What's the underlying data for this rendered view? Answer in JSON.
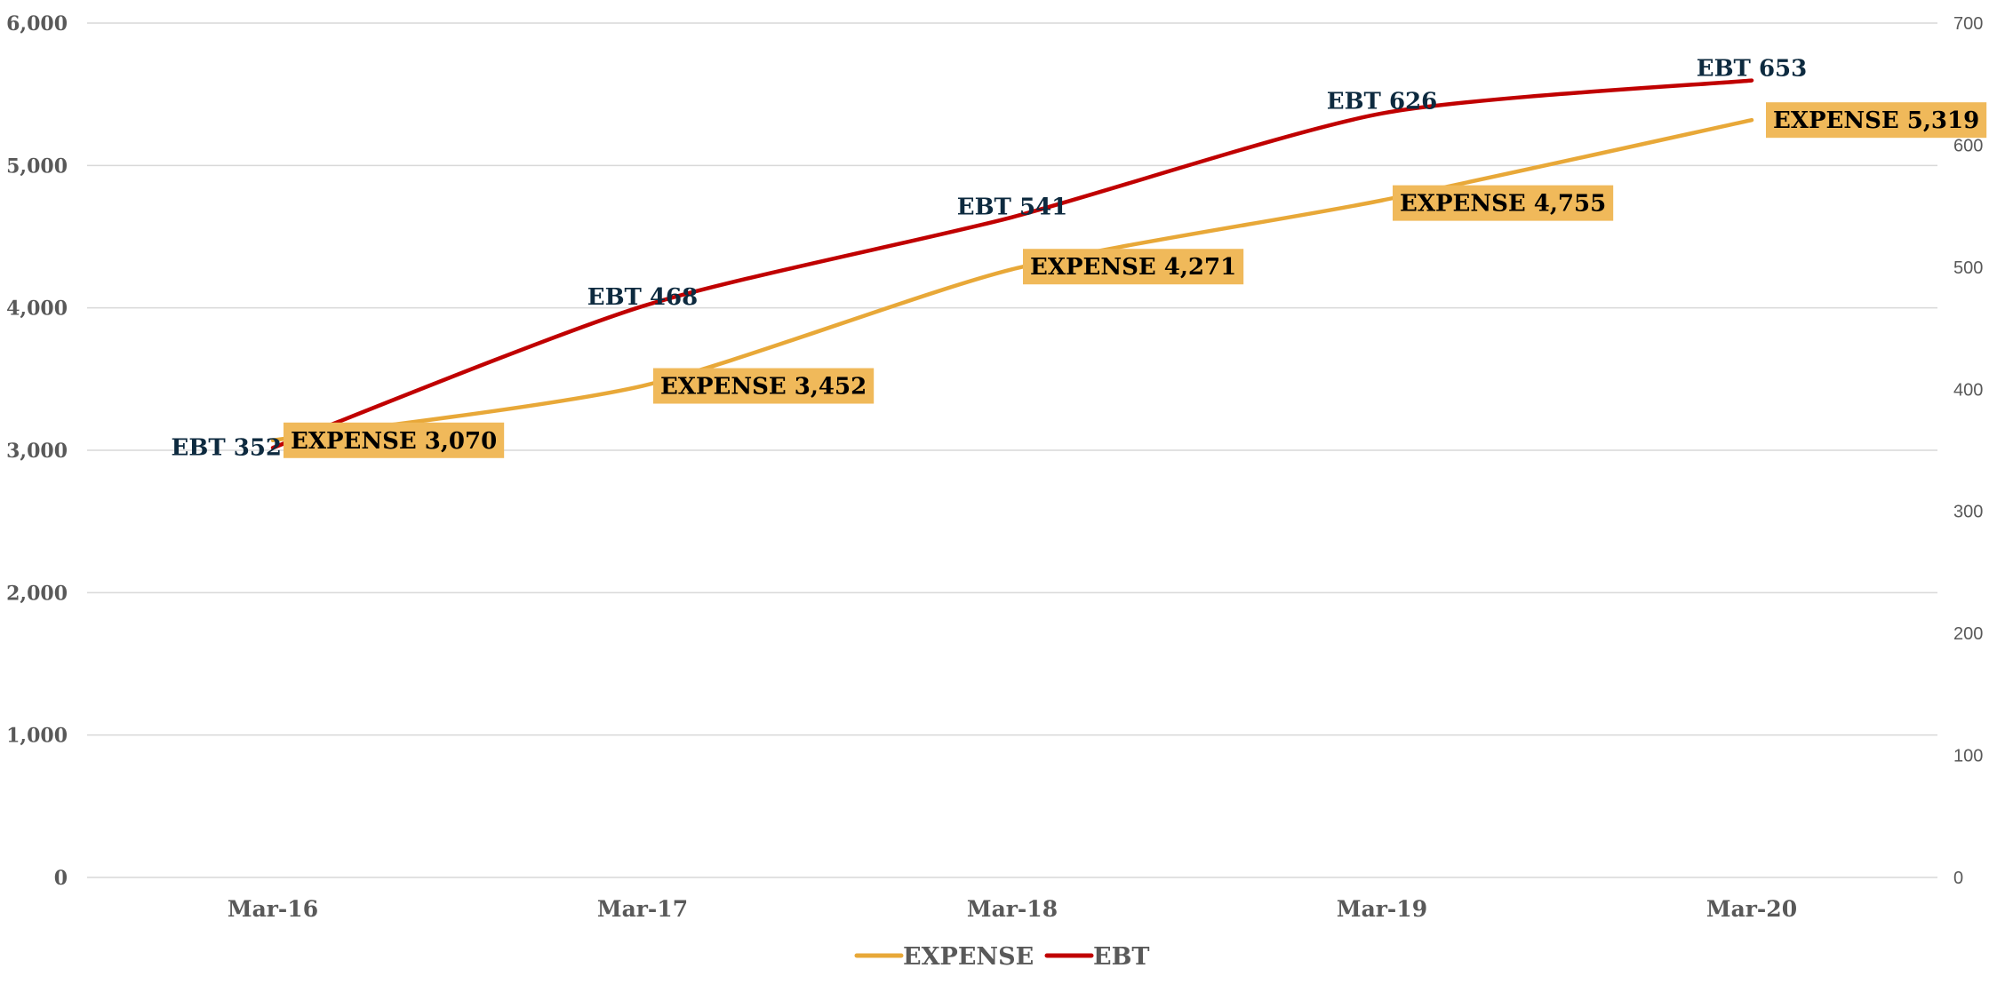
{
  "chart_data": {
    "type": "line",
    "categories": [
      "Mar-16",
      "Mar-17",
      "Mar-18",
      "Mar-19",
      "Mar-20"
    ],
    "series": [
      {
        "name": "EXPENSE",
        "axis": "left",
        "color": "#E8A838",
        "values": [
          3070,
          3452,
          4271,
          4755,
          5319
        ],
        "labels": [
          "EXPENSE 3,070",
          "EXPENSE 3,452",
          "EXPENSE 4,271",
          "EXPENSE 4,755",
          "EXPENSE 5,319"
        ]
      },
      {
        "name": "EBT",
        "axis": "right",
        "color": "#C00000",
        "values": [
          352,
          468,
          541,
          626,
          653
        ],
        "labels": [
          "EBT 352",
          "EBT 468",
          "EBT 541",
          "EBT 626",
          "EBT 653"
        ]
      }
    ],
    "y_left": {
      "min": 0,
      "max": 6000,
      "ticks": [
        0,
        1000,
        2000,
        3000,
        4000,
        5000,
        6000
      ],
      "tick_labels": [
        "0",
        "1,000",
        "2,000",
        "3,000",
        "4,000",
        "5,000",
        "6,000"
      ]
    },
    "y_right": {
      "min": 0,
      "max": 700,
      "ticks": [
        0,
        100,
        200,
        300,
        400,
        500,
        600,
        700
      ],
      "tick_labels": [
        "0",
        "100",
        "200",
        "300",
        "400",
        "500",
        "600",
        "700"
      ]
    },
    "grid": true,
    "legend": {
      "position": "bottom",
      "entries": [
        "EXPENSE",
        "EBT"
      ]
    },
    "label_box_color": "#F0B95A"
  }
}
